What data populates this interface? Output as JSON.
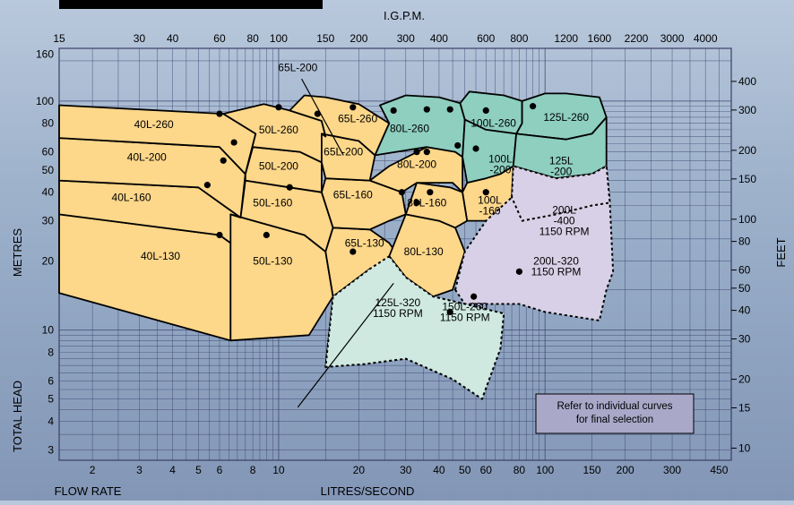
{
  "chart_data": {
    "type": "line",
    "title": "",
    "top_axis_label": "I.G.P.M.",
    "top_ticks": [
      "15",
      "30",
      "40",
      "60",
      "80",
      "100",
      "150",
      "200",
      "300",
      "400",
      "600",
      "800",
      "1200",
      "1600",
      "2200",
      "3000",
      "4000"
    ],
    "bottom_axis_label_left": "FLOW RATE",
    "bottom_axis_label_right": "LITRES/SECOND",
    "x_ticks": [
      "2",
      "3",
      "4",
      "5",
      "6",
      "8",
      "10",
      "20",
      "30",
      "40",
      "50",
      "60",
      "80",
      "100",
      "150",
      "200",
      "300",
      "450"
    ],
    "left_axis_label_upper": "METRES",
    "left_axis_label_lower": "TOTAL HEAD",
    "y_ticks_left": [
      "3",
      "4",
      "5",
      "6",
      "8",
      "10",
      "20",
      "30",
      "40",
      "50",
      "60",
      "80",
      "100",
      "160"
    ],
    "right_axis_label": "FEET",
    "y_ticks_right": [
      "10",
      "15",
      "20",
      "30",
      "40",
      "50",
      "60",
      "80",
      "100",
      "150",
      "200",
      "300",
      "400"
    ],
    "xlim_lps": [
      1.5,
      500
    ],
    "ylim_m": [
      2.7,
      170
    ],
    "log_scale": true,
    "grid": true,
    "note": [
      "Refer to individual curves",
      "for final selection"
    ],
    "regions": [
      {
        "name": "40L-130",
        "group": "yellow",
        "polygon": [
          [
            1.5,
            14.5
          ],
          [
            1.5,
            32
          ],
          [
            6,
            26
          ],
          [
            6.6,
            24
          ],
          [
            6.6,
            9
          ]
        ],
        "label_at": [
          3.6,
          21
        ]
      },
      {
        "name": "40L-160",
        "group": "yellow",
        "polygon": [
          [
            1.5,
            32
          ],
          [
            1.5,
            45
          ],
          [
            5,
            42
          ],
          [
            7.2,
            31
          ],
          [
            6.6,
            24
          ],
          [
            6,
            26
          ]
        ],
        "label_at": [
          2.8,
          38
        ]
      },
      {
        "name": "40L-200",
        "group": "yellow",
        "polygon": [
          [
            1.5,
            45
          ],
          [
            1.5,
            69
          ],
          [
            6,
            63
          ],
          [
            7.5,
            48
          ],
          [
            7.2,
            31
          ],
          [
            5,
            42
          ]
        ],
        "label_at": [
          3.2,
          57
        ]
      },
      {
        "name": "40L-260",
        "group": "yellow",
        "polygon": [
          [
            1.5,
            69
          ],
          [
            1.5,
            96
          ],
          [
            6.2,
            88
          ],
          [
            8.2,
            72
          ],
          [
            7.5,
            48
          ],
          [
            6,
            63
          ]
        ],
        "label_at": [
          3.4,
          79
        ]
      },
      {
        "name": "50L-130",
        "group": "yellow",
        "polygon": [
          [
            6.6,
            9
          ],
          [
            6.6,
            32
          ],
          [
            12.5,
            26
          ],
          [
            15,
            22
          ],
          [
            16,
            14
          ],
          [
            13,
            9.5
          ]
        ],
        "label_at": [
          9.5,
          20
        ]
      },
      {
        "name": "50L-160",
        "group": "yellow",
        "polygon": [
          [
            7.2,
            31
          ],
          [
            7.5,
            45
          ],
          [
            11,
            42
          ],
          [
            14.5,
            40
          ],
          [
            16,
            28
          ],
          [
            15,
            22
          ],
          [
            12.5,
            26
          ],
          [
            6.6,
            32
          ]
        ],
        "label_at": [
          9.5,
          36
        ]
      },
      {
        "name": "50L-200",
        "group": "yellow",
        "polygon": [
          [
            7.5,
            48
          ],
          [
            8,
            63
          ],
          [
            12,
            60
          ],
          [
            14.5,
            54
          ],
          [
            14.5,
            40
          ],
          [
            11,
            42
          ],
          [
            7.5,
            45
          ]
        ],
        "label_at": [
          10,
          52
        ]
      },
      {
        "name": "50L-260",
        "group": "yellow",
        "polygon": [
          [
            7.5,
            48
          ],
          [
            8.2,
            72
          ],
          [
            6.2,
            88
          ],
          [
            8.8,
            97
          ],
          [
            11,
            91
          ],
          [
            14.5,
            82
          ],
          [
            15,
            70
          ],
          [
            14.5,
            54
          ],
          [
            12,
            60
          ],
          [
            8,
            63
          ]
        ],
        "label_at": [
          10,
          75
        ]
      },
      {
        "name": "125L-320 1150 RPM",
        "group": "mint",
        "polygon": [
          [
            15,
            6.9
          ],
          [
            16,
            14
          ],
          [
            22,
            18.5
          ],
          [
            26,
            21
          ],
          [
            30,
            17
          ],
          [
            38,
            14
          ],
          [
            50,
            13
          ],
          [
            70,
            11.8
          ],
          [
            68,
            8.3
          ],
          [
            58,
            5
          ],
          [
            45,
            6.1
          ],
          [
            30,
            7.5
          ],
          [
            21,
            7.1
          ]
        ],
        "label_at": [
          28,
          12.5
        ]
      },
      {
        "name": "65L-130",
        "group": "yellow",
        "polygon": [
          [
            15,
            22
          ],
          [
            16,
            28
          ],
          [
            22,
            27.5
          ],
          [
            26,
            24
          ],
          [
            29,
            20
          ],
          [
            25,
            17
          ],
          [
            22,
            18.5
          ],
          [
            16,
            14
          ]
        ],
        "label_at": [
          21,
          24
        ]
      },
      {
        "name": "65L-160",
        "group": "yellow",
        "polygon": [
          [
            14.5,
            40
          ],
          [
            15,
            46
          ],
          [
            22,
            45
          ],
          [
            29,
            40
          ],
          [
            30,
            32
          ],
          [
            26,
            30
          ],
          [
            22,
            27.5
          ],
          [
            16,
            28
          ]
        ],
        "label_at": [
          19,
          39
        ]
      },
      {
        "name": "65L-200",
        "group": "yellow",
        "polygon": [
          [
            14.5,
            54
          ],
          [
            14.5,
            72
          ],
          [
            20,
            67
          ],
          [
            23,
            58
          ],
          [
            22,
            45
          ],
          [
            15,
            46
          ]
        ],
        "label_at": [
          17.5,
          60
        ],
        "callout": true
      },
      {
        "name": "65L-260",
        "group": "yellow",
        "polygon": [
          [
            11,
            91
          ],
          [
            12.5,
            106
          ],
          [
            15,
            104
          ],
          [
            20,
            97
          ],
          [
            26,
            80
          ],
          [
            23,
            58
          ],
          [
            20,
            67
          ],
          [
            14.5,
            72
          ],
          [
            15,
            70
          ],
          [
            14.5,
            82
          ]
        ],
        "label_at": [
          19.8,
          84
        ]
      },
      {
        "name": "80L-130",
        "group": "yellow",
        "polygon": [
          [
            26,
            21
          ],
          [
            30,
            32
          ],
          [
            40,
            30
          ],
          [
            46,
            28
          ],
          [
            50,
            22
          ],
          [
            45,
            15
          ],
          [
            38,
            14
          ],
          [
            30,
            17
          ]
        ],
        "label_at": [
          35,
          22
        ]
      },
      {
        "name": "80L-160",
        "group": "yellow",
        "polygon": [
          [
            30,
            32
          ],
          [
            33,
            44
          ],
          [
            44,
            42
          ],
          [
            49,
            40
          ],
          [
            51,
            30
          ],
          [
            46,
            28
          ],
          [
            40,
            30
          ]
        ],
        "label_at": [
          36,
          36
        ]
      },
      {
        "name": "80L-200",
        "group": "yellow",
        "polygon": [
          [
            29,
            40
          ],
          [
            33,
            44
          ],
          [
            45,
            44
          ],
          [
            49,
            40
          ],
          [
            49,
            57
          ],
          [
            46,
            60
          ],
          [
            36,
            63
          ],
          [
            26,
            52
          ],
          [
            22,
            45
          ]
        ],
        "label_at": [
          33,
          53
        ]
      },
      {
        "name": "80L-260",
        "group": "mint",
        "polygon": [
          [
            23,
            58
          ],
          [
            26,
            80
          ],
          [
            24,
            96
          ],
          [
            30,
            106
          ],
          [
            40,
            104
          ],
          [
            48,
            98
          ],
          [
            50,
            83
          ],
          [
            49,
            57
          ],
          [
            46,
            60
          ],
          [
            36,
            63
          ]
        ],
        "label_at": [
          31,
          76
        ]
      },
      {
        "name": "100L-260",
        "group": "mint",
        "polygon": [
          [
            48,
            98
          ],
          [
            52,
            110
          ],
          [
            70,
            106
          ],
          [
            82,
            100
          ],
          [
            82,
            80
          ],
          [
            78,
            72
          ],
          [
            60,
            75
          ],
          [
            50,
            83
          ]
        ],
        "label_at": [
          64,
          80
        ]
      },
      {
        "name": "100L -200",
        "group": "mint",
        "polygon": [
          [
            49,
            57
          ],
          [
            50,
            83
          ],
          [
            60,
            75
          ],
          [
            78,
            72
          ],
          [
            76,
            52
          ],
          [
            68,
            48
          ],
          [
            60,
            46
          ],
          [
            51,
            44
          ]
        ],
        "label_at": [
          68,
          53
        ]
      },
      {
        "name": "100L -160",
        "group": "yellow",
        "polygon": [
          [
            49,
            40
          ],
          [
            51,
            44
          ],
          [
            60,
            46
          ],
          [
            68,
            48
          ],
          [
            76,
            52
          ],
          [
            75,
            38
          ],
          [
            68,
            30
          ],
          [
            51,
            30
          ]
        ],
        "label_at": [
          62,
          35
        ]
      },
      {
        "name": "125L-260",
        "group": "mint",
        "polygon": [
          [
            82,
            80
          ],
          [
            82,
            100
          ],
          [
            100,
            108
          ],
          [
            120,
            108
          ],
          [
            160,
            104
          ],
          [
            170,
            85
          ],
          [
            150,
            72
          ],
          [
            120,
            68
          ],
          [
            78,
            72
          ]
        ],
        "label_at": [
          120,
          85
        ]
      },
      {
        "name": "125L -200",
        "group": "mint",
        "polygon": [
          [
            76,
            52
          ],
          [
            78,
            72
          ],
          [
            120,
            68
          ],
          [
            150,
            72
          ],
          [
            170,
            85
          ],
          [
            170,
            52
          ],
          [
            150,
            48
          ],
          [
            110,
            46
          ]
        ],
        "label_at": [
          115,
          52
        ]
      },
      {
        "name": "200L-320 1150 RPM",
        "group": "lavender",
        "polygon": [
          [
            46,
            15
          ],
          [
            50,
            22
          ],
          [
            60,
            30
          ],
          [
            75,
            38
          ],
          [
            82,
            42
          ],
          [
            110,
            46
          ],
          [
            150,
            48
          ],
          [
            170,
            52
          ],
          [
            175,
            36
          ],
          [
            180,
            18
          ],
          [
            170,
            15
          ],
          [
            160,
            11
          ],
          [
            100,
            12
          ],
          [
            80,
            13
          ],
          [
            60,
            13
          ],
          [
            50,
            13
          ]
        ],
        "label_at": [
          110,
          19
        ]
      },
      {
        "name": "200L -400 1150 RPM",
        "group": "lavender",
        "polygon": [
          [
            75,
            38
          ],
          [
            76,
            52
          ],
          [
            110,
            46
          ],
          [
            150,
            48
          ],
          [
            170,
            52
          ],
          [
            175,
            36
          ],
          [
            150,
            35
          ],
          [
            110,
            32
          ],
          [
            82,
            30
          ]
        ],
        "label_at": [
          118,
          30
        ]
      },
      {
        "name": "150L-260 1150 RPM",
        "group": "mint",
        "polygon": [
          [
            26,
            21
          ],
          [
            30,
            17
          ],
          [
            38,
            14
          ],
          [
            50,
            13
          ],
          [
            70,
            11.8
          ],
          [
            68,
            8.3
          ],
          [
            58,
            5
          ],
          [
            45,
            6.1
          ],
          [
            30,
            7.5
          ],
          [
            21,
            7.1
          ],
          [
            15,
            6.9
          ],
          [
            16,
            14
          ],
          [
            22,
            18.5
          ]
        ],
        "label_at": [
          50,
          12
        ]
      }
    ],
    "markers": [
      [
        6,
        88
      ],
      [
        6.8,
        66
      ],
      [
        6.2,
        55
      ],
      [
        5.4,
        43
      ],
      [
        6,
        26
      ],
      [
        10,
        94
      ],
      [
        14,
        88
      ],
      [
        19,
        94
      ],
      [
        27,
        91
      ],
      [
        36,
        92
      ],
      [
        44,
        92
      ],
      [
        60,
        91
      ],
      [
        90,
        95
      ],
      [
        11,
        42
      ],
      [
        9,
        26
      ],
      [
        19,
        22
      ],
      [
        29,
        40
      ],
      [
        33,
        60
      ],
      [
        36,
        60
      ],
      [
        37,
        40
      ],
      [
        33,
        36
      ],
      [
        44,
        12
      ],
      [
        60,
        40
      ],
      [
        80,
        18
      ],
      [
        54,
        14
      ],
      [
        47,
        64
      ],
      [
        55,
        62
      ]
    ]
  }
}
